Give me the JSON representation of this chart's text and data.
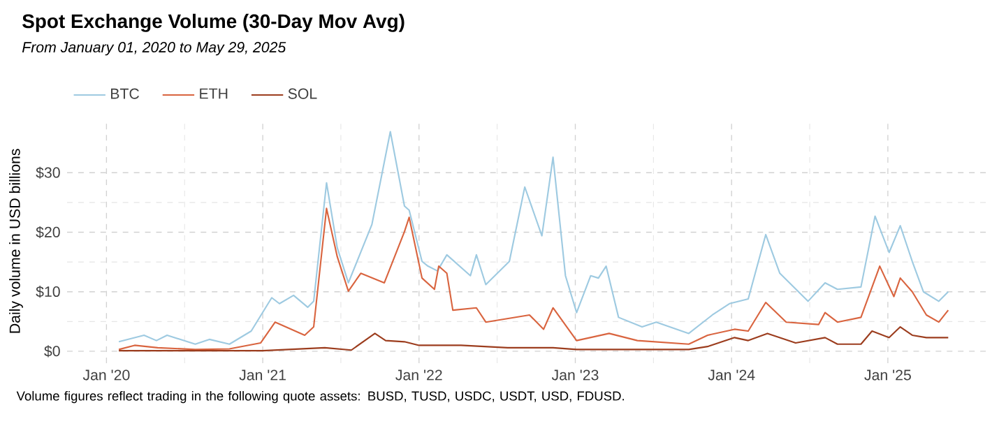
{
  "chart_data": {
    "type": "line",
    "title": "Spot Exchange Volume (30-Day Mov Avg)",
    "subtitle": "From January 01, 2020 to May 29, 2025",
    "ylabel": "Daily volume in USD billions",
    "annotations": [
      "Volume figures reflect trading in the following quote assets: BUSD, TUSD, USDC, USDT, USD, FDUSD."
    ],
    "xlim": [
      "2019-10-01",
      "2025-08-18"
    ],
    "xticks": [
      {
        "value": "2020-01-01",
        "label": "Jan '20"
      },
      {
        "value": "2021-01-01",
        "label": "Jan '21"
      },
      {
        "value": "2022-01-01",
        "label": "Jan '22"
      },
      {
        "value": "2023-01-01",
        "label": "Jan '23"
      },
      {
        "value": "2024-01-01",
        "label": "Jan '24"
      },
      {
        "value": "2025-01-01",
        "label": "Jan '25"
      }
    ],
    "ylim": [
      -2,
      39
    ],
    "yticks": [
      {
        "value": 0,
        "label": "$0"
      },
      {
        "value": 10,
        "label": "$10"
      },
      {
        "value": 20,
        "label": "$20"
      },
      {
        "value": 30,
        "label": "$30"
      }
    ],
    "grid": true,
    "legend": "top left",
    "line_style": "solid",
    "series": [
      {
        "name": "BTC",
        "color": "#9ecae1",
        "x": [
          "2020-01-30",
          "2020-03-29",
          "2020-04-27",
          "2020-05-22",
          "2020-07-27",
          "2020-08-29",
          "2020-10-15",
          "2020-12-05",
          "2021-01-22",
          "2021-02-09",
          "2021-03-14",
          "2021-04-16",
          "2021-04-30",
          "2021-05-30",
          "2021-06-24",
          "2021-07-20",
          "2021-09-13",
          "2021-10-26",
          "2021-11-28",
          "2021-12-09",
          "2022-01-08",
          "2022-01-22",
          "2022-02-13",
          "2022-03-07",
          "2022-05-01",
          "2022-05-15",
          "2022-06-06",
          "2022-07-31",
          "2022-09-05",
          "2022-10-15",
          "2022-11-10",
          "2022-12-09",
          "2023-01-04",
          "2023-02-06",
          "2023-02-24",
          "2023-03-14",
          "2023-04-12",
          "2023-06-06",
          "2023-07-09",
          "2023-09-23",
          "2023-11-17",
          "2023-12-27",
          "2024-02-09",
          "2024-03-21",
          "2024-04-23",
          "2024-06-28",
          "2024-08-07",
          "2024-09-05",
          "2024-10-30",
          "2024-12-02",
          "2025-01-04",
          "2025-01-30",
          "2025-02-27",
          "2025-03-25",
          "2025-04-30",
          "2025-05-22"
        ],
        "values": [
          1.6,
          2.7,
          1.8,
          2.7,
          1.2,
          2.0,
          1.2,
          3.4,
          9.0,
          8.0,
          9.4,
          7.4,
          8.4,
          28.3,
          17.4,
          11.5,
          21.3,
          36.9,
          24.4,
          23.7,
          15.1,
          14.3,
          13.5,
          16.2,
          12.7,
          16.2,
          11.2,
          15.1,
          27.6,
          19.4,
          32.6,
          12.7,
          6.5,
          12.7,
          12.3,
          14.3,
          5.7,
          4.1,
          4.9,
          3.0,
          6.1,
          8.0,
          8.8,
          19.6,
          13.1,
          8.4,
          11.5,
          10.4,
          10.8,
          22.7,
          16.6,
          21.1,
          15.1,
          10.0,
          8.4,
          10.0
        ]
      },
      {
        "name": "ETH",
        "color": "#d9643f",
        "x": [
          "2020-01-30",
          "2020-03-07",
          "2020-04-30",
          "2020-07-27",
          "2020-10-15",
          "2020-12-27",
          "2021-01-30",
          "2021-04-09",
          "2021-04-30",
          "2021-05-30",
          "2021-06-24",
          "2021-07-20",
          "2021-08-18",
          "2021-10-12",
          "2021-11-28",
          "2021-12-09",
          "2022-01-08",
          "2022-02-06",
          "2022-02-16",
          "2022-03-07",
          "2022-03-21",
          "2022-05-15",
          "2022-06-06",
          "2022-09-16",
          "2022-10-19",
          "2022-11-10",
          "2023-01-04",
          "2023-03-21",
          "2023-05-26",
          "2023-09-23",
          "2023-11-06",
          "2024-01-08",
          "2024-02-09",
          "2024-03-21",
          "2024-05-08",
          "2024-07-23",
          "2024-08-07",
          "2024-09-05",
          "2024-10-30",
          "2024-12-13",
          "2025-01-15",
          "2025-01-30",
          "2025-02-27",
          "2025-04-01",
          "2025-04-30",
          "2025-05-22"
        ],
        "values": [
          0.3,
          1.0,
          0.6,
          0.3,
          0.4,
          1.4,
          4.9,
          2.7,
          4.1,
          24.0,
          15.9,
          10.1,
          13.1,
          11.5,
          20.1,
          22.5,
          12.3,
          10.4,
          14.3,
          13.1,
          6.9,
          7.3,
          4.9,
          6.1,
          3.7,
          7.3,
          1.8,
          3.0,
          1.8,
          1.2,
          2.7,
          3.7,
          3.4,
          8.2,
          4.9,
          4.5,
          6.5,
          4.9,
          5.7,
          14.3,
          9.2,
          12.3,
          10.0,
          6.1,
          4.9,
          6.9
        ]
      },
      {
        "name": "SOL",
        "color": "#9c3d1e",
        "x": [
          "2020-01-30",
          "2021-01-01",
          "2021-05-26",
          "2021-07-27",
          "2021-09-20",
          "2021-10-15",
          "2021-11-28",
          "2022-01-01",
          "2022-04-09",
          "2022-07-27",
          "2022-11-10",
          "2023-01-04",
          "2023-09-23",
          "2023-11-06",
          "2024-01-08",
          "2024-02-09",
          "2024-03-25",
          "2024-05-30",
          "2024-08-07",
          "2024-09-05",
          "2024-10-30",
          "2024-11-25",
          "2025-01-04",
          "2025-01-30",
          "2025-02-27",
          "2025-04-01",
          "2025-05-22"
        ],
        "values": [
          0.1,
          0.1,
          0.6,
          0.2,
          3.0,
          1.8,
          1.6,
          1.0,
          1.0,
          0.6,
          0.6,
          0.3,
          0.3,
          0.8,
          2.3,
          1.8,
          3.0,
          1.4,
          2.3,
          1.2,
          1.2,
          3.4,
          2.3,
          4.1,
          2.7,
          2.3,
          2.3
        ]
      }
    ]
  }
}
